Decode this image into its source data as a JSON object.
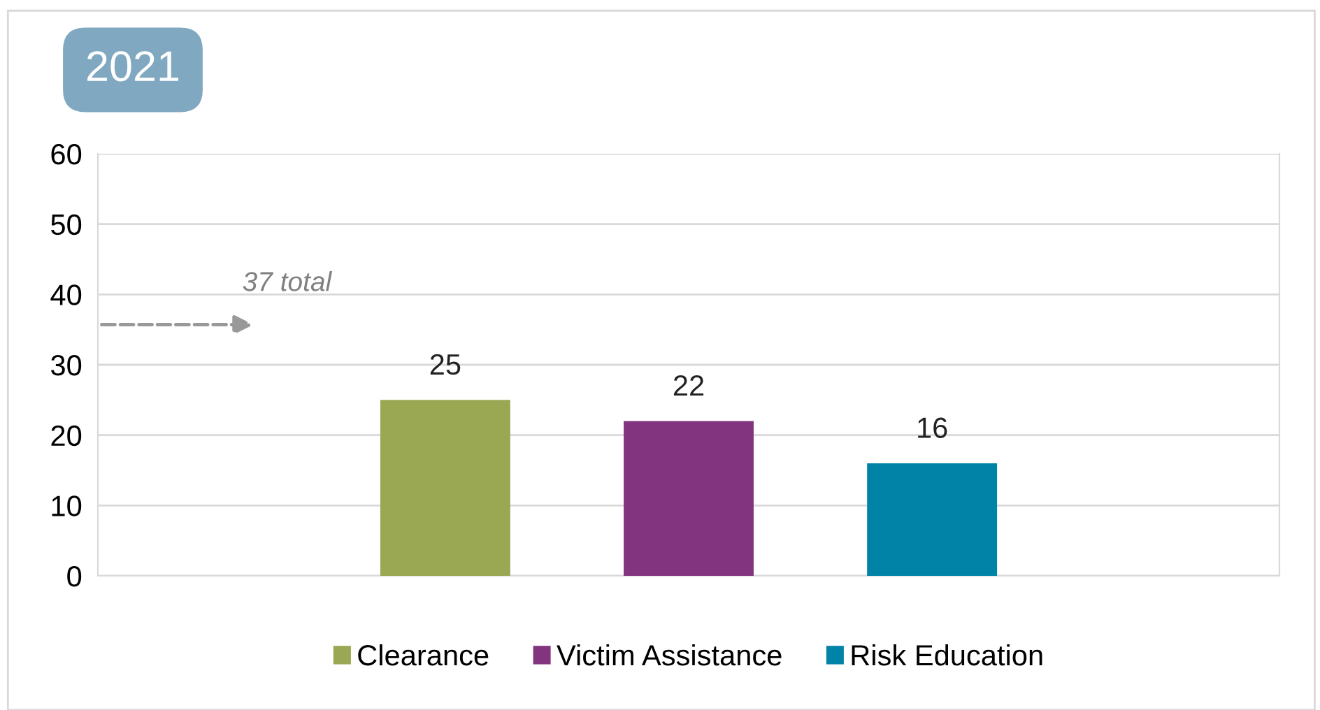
{
  "chart_data": {
    "type": "bar",
    "title": "2021",
    "categories": [
      null
    ],
    "series": [
      {
        "name": "Clearance",
        "color": "#9aa753",
        "values": [
          25
        ]
      },
      {
        "name": "Victim Assistance",
        "color": "#82357e",
        "values": [
          22
        ]
      },
      {
        "name": "Risk Education",
        "color": "#0083a6",
        "values": [
          16
        ]
      }
    ],
    "ylim": [
      0,
      60
    ],
    "yticks": [
      0,
      10,
      20,
      30,
      40,
      50,
      60
    ],
    "grid": "y",
    "legend": "bottom",
    "data_labels": true,
    "annotations": [
      "37 total"
    ]
  }
}
